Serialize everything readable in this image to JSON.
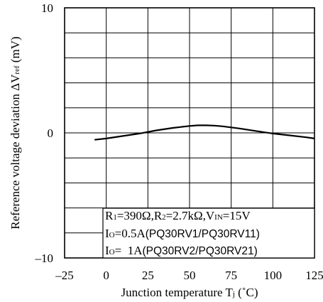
{
  "chart_data": {
    "type": "line",
    "xlabel": "Junction temperature T",
    "xlabel_sub": "j",
    "xlabel_unit": " (˚C)",
    "ylabel": "Reference voltage deviation ΔV",
    "ylabel_sub": "ref",
    "ylabel_unit": " (mV)",
    "xlim": [
      -25,
      125
    ],
    "ylim": [
      -10,
      10
    ],
    "x_ticks": [
      "–25",
      "0",
      "25",
      "50",
      "75",
      "100",
      "125"
    ],
    "y_ticks": [
      {
        "value": 10,
        "label": "10"
      },
      {
        "value": 0,
        "label": "0"
      },
      {
        "value": -10,
        "label": "–10"
      }
    ],
    "grid": true,
    "series": [
      {
        "x": [
          -7,
          0,
          10,
          20,
          30,
          40,
          50,
          55,
          60,
          65,
          70,
          80,
          90,
          100,
          110,
          120,
          125
        ],
        "y": [
          -0.55,
          -0.45,
          -0.25,
          -0.05,
          0.2,
          0.4,
          0.55,
          0.6,
          0.6,
          0.58,
          0.52,
          0.35,
          0.15,
          -0.05,
          -0.2,
          -0.35,
          -0.45
        ]
      }
    ],
    "annotation": {
      "line1": {
        "p1": "R",
        "p1_sub": "1",
        "p2": "=390Ω,R",
        "p2_sub": "2",
        "p3": "=2.7kΩ,V",
        "p3_sub": "IN",
        "p4": "=15V"
      },
      "line2": {
        "p1": "I",
        "p1_sub": "O",
        "p2": "=0.5A",
        "p3": "(PQ30RV1/PQ30RV11)"
      },
      "line3": {
        "p1": "I",
        "p1_sub": "O",
        "p2": "=  1A",
        "p3": "(PQ30RV2/PQ30RV21)"
      }
    }
  }
}
